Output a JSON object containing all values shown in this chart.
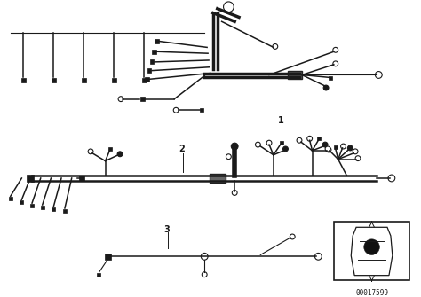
{
  "bg_color": "#ffffff",
  "line_color": "#1a1a1a",
  "part_number": "00017599",
  "fig_width": 4.74,
  "fig_height": 3.35,
  "dpi": 100
}
